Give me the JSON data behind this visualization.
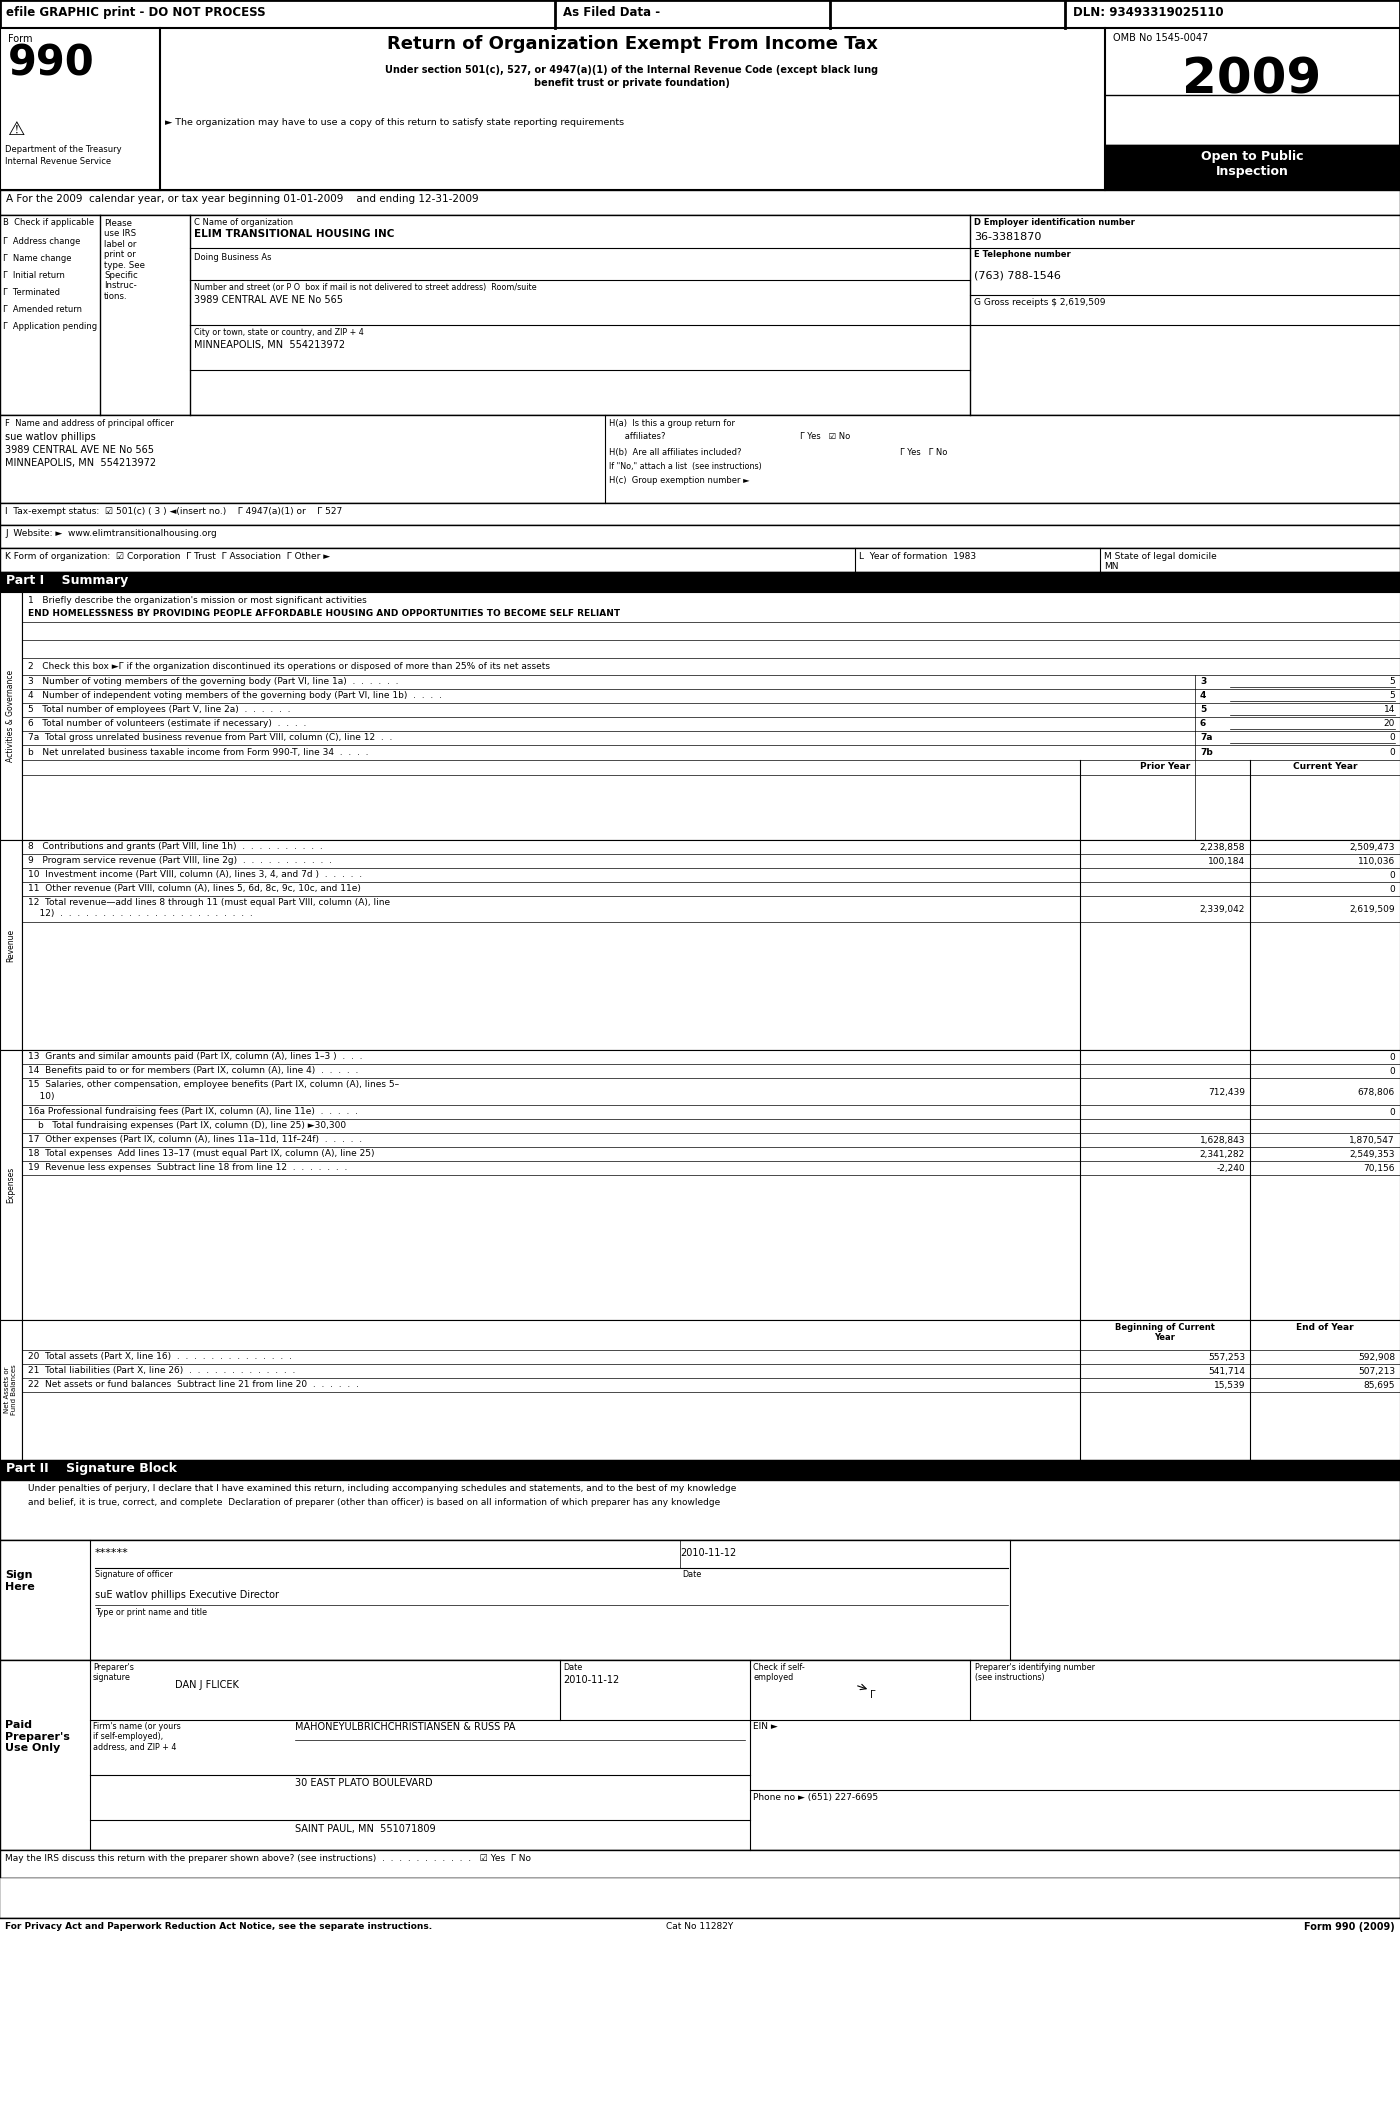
{
  "title": "Return of Organization Exempt From Income Tax",
  "form_number": "990",
  "year": "2009",
  "omb": "OMB No 1545-0047",
  "dln": "DLN: 93493319025110",
  "header_note": "efile GRAPHIC print - DO NOT PROCESS",
  "filed_data": "As Filed Data -",
  "open_to_public": "Open to Public\nInspection",
  "section_A": "A For the 2009  calendar year, or tax year beginning 01-01-2009    and ending 12-31-2009",
  "org_name": "ELIM TRANSITIONAL HOUSING INC",
  "dba": "Doing Business As",
  "ein": "36-3381870",
  "phone": "(763) 788-1546",
  "address": "3989 CENTRAL AVE NE No 565",
  "city": "MINNEAPOLIS, MN  554213972",
  "gross_receipts": "G Gross receipts $ 2,619,509",
  "officer_name": "sue watlov phillips",
  "officer_address": "3989 CENTRAL AVE NE No 565",
  "officer_city": "MINNEAPOLIS, MN  554213972",
  "part1_title": "Part I    Summary",
  "line1_value": "END HOMELESSNESS BY PROVIDING PEOPLE AFFORDABLE HOUSING AND OPPORTUNITIES TO BECOME SELF RELIANT",
  "line3_num": "5",
  "line4_num": "5",
  "line5_num": "14",
  "line6_num": "20",
  "line7a_num": "0",
  "line7b_num": "0",
  "prior_year_label": "Prior Year",
  "current_year_label": "Current Year",
  "line8_prior": "2,238,858",
  "line8_current": "2,509,473",
  "line9_prior": "100,184",
  "line9_current": "110,036",
  "line10_current": "0",
  "line11_current": "0",
  "line12_prior": "2,339,042",
  "line12_current": "2,619,509",
  "line13_current": "0",
  "line14_current": "0",
  "line15_prior": "712,439",
  "line15_current": "678,806",
  "line16a_current": "0",
  "line17_prior": "1,628,843",
  "line17_current": "1,870,547",
  "line18_prior": "2,341,282",
  "line18_current": "2,549,353",
  "line19_prior": "-2,240",
  "line19_current": "70,156",
  "boc_label": "Beginning of Current\nYear",
  "eoy_label": "End of Year",
  "line20_boc": "557,253",
  "line20_eoy": "592,908",
  "line21_boc": "541,714",
  "line21_eoy": "507,213",
  "line22_boc": "15,539",
  "line22_eoy": "85,695",
  "part2_title": "Part II    Signature Block",
  "sig_note1": "Under penalties of perjury, I declare that I have examined this return, including accompanying schedules and statements, and to the best of my knowledge",
  "sig_note2": "and belief, it is true, correct, and complete  Declaration of preparer (other than officer) is based on all information of which preparer has any knowledge",
  "sig_stars": "******",
  "sig_date": "2010-11-12",
  "sig_officer": "suE watlov phillips Executive Director",
  "prep_sig": "DAN J FLICEK",
  "prep_date": "2010-11-12",
  "prep_firm": "MAHONEYULBRICHCHRISTIANSEN & RUSS PA",
  "prep_address": "30 EAST PLATO BOULEVARD",
  "prep_city": "SAINT PAUL, MN  551071809",
  "prep_phone": "Phone no ► (651) 227-6695",
  "may_discuss_text": "May the IRS discuss this return with the preparer shown above? (see instructions)  .  .  .  .  .  .  .  .  .  .  .",
  "privacy_note": "For Privacy Act and Paperwork Reduction Act Notice, see the separate instructions.",
  "cat_no": "Cat No 11282Y",
  "form_footer": "Form 990 (2009)"
}
